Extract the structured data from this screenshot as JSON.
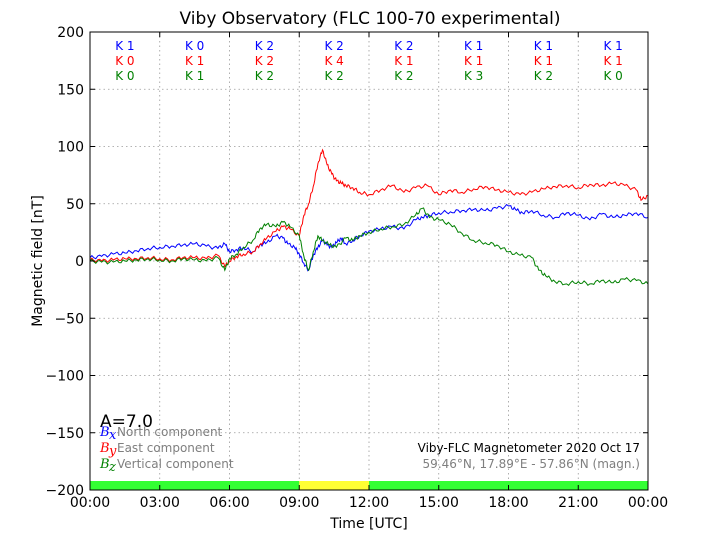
{
  "chart_data": {
    "type": "line",
    "title": "Viby Observatory (FLC 100-70 experimental)",
    "xlabel": "Time [UTC]",
    "ylabel": "Magnetic field [nT]",
    "xlim": [
      0,
      24
    ],
    "ylim": [
      -200,
      200
    ],
    "xticks": [
      0,
      3,
      6,
      9,
      12,
      15,
      18,
      21,
      24
    ],
    "xtick_labels": [
      "00:00",
      "03:00",
      "06:00",
      "09:00",
      "12:00",
      "15:00",
      "18:00",
      "21:00",
      "00:00"
    ],
    "yticks": [
      -200,
      -150,
      -100,
      -50,
      0,
      50,
      100,
      150,
      200
    ],
    "ytick_labels": [
      "−200",
      "−150",
      "−100",
      "−50",
      "0",
      "50",
      "100",
      "150",
      "200"
    ],
    "grid": true,
    "colors": {
      "north": "#0000ff",
      "east": "#ff0000",
      "vertical": "#008000"
    },
    "series": [
      {
        "name": "North component",
        "symbol": "B",
        "subscript": "x",
        "color": "#0000ff",
        "x": [
          0,
          0.5,
          1,
          1.5,
          2,
          2.5,
          3,
          3.5,
          4,
          4.5,
          5,
          5.5,
          5.8,
          6,
          6.3,
          6.6,
          7,
          7.3,
          7.6,
          8,
          8.3,
          8.5,
          8.8,
          9,
          9.2,
          9.4,
          9.6,
          9.8,
          10,
          10.2,
          10.4,
          10.6,
          10.8,
          11,
          11.3,
          11.6,
          12,
          12.5,
          13,
          13.5,
          14,
          14.3,
          14.6,
          15,
          15.5,
          16,
          16.5,
          17,
          17.5,
          18,
          18.3,
          18.6,
          19,
          19.5,
          20,
          20.5,
          21,
          21.5,
          22,
          22.5,
          23,
          23.5,
          24
        ],
        "values": [
          3,
          4,
          6,
          7,
          9,
          11,
          12,
          13,
          14,
          15,
          13,
          11,
          15,
          8,
          10,
          12,
          8,
          14,
          16,
          22,
          20,
          15,
          12,
          6,
          -2,
          -8,
          5,
          12,
          18,
          14,
          12,
          16,
          20,
          15,
          18,
          22,
          26,
          28,
          30,
          28,
          36,
          38,
          40,
          42,
          43,
          44,
          45,
          44,
          46,
          48,
          45,
          42,
          44,
          40,
          38,
          42,
          40,
          36,
          41,
          38,
          40,
          42,
          38
        ]
      },
      {
        "name": "East component",
        "symbol": "B",
        "subscript": "y",
        "color": "#ff0000",
        "x": [
          0,
          0.5,
          1,
          1.5,
          2,
          2.5,
          3,
          3.5,
          4,
          4.5,
          5,
          5.5,
          5.8,
          6,
          6.3,
          6.6,
          7,
          7.3,
          7.6,
          8,
          8.3,
          8.6,
          9,
          9.2,
          9.4,
          9.6,
          9.8,
          10,
          10.2,
          10.4,
          10.6,
          10.8,
          11,
          11.3,
          11.6,
          12,
          12.5,
          13,
          13.5,
          14,
          14.5,
          15,
          15.5,
          16,
          16.5,
          17,
          17.5,
          18,
          18.5,
          19,
          19.5,
          20,
          20.5,
          21,
          21.5,
          22,
          22.5,
          23,
          23.5,
          23.7,
          24
        ],
        "values": [
          1,
          0,
          1,
          2,
          2,
          3,
          2,
          1,
          3,
          3,
          2,
          5,
          -5,
          0,
          4,
          6,
          8,
          14,
          20,
          26,
          30,
          28,
          22,
          40,
          50,
          65,
          85,
          97,
          84,
          76,
          70,
          68,
          66,
          64,
          60,
          58,
          62,
          66,
          60,
          64,
          66,
          58,
          62,
          60,
          63,
          65,
          62,
          60,
          58,
          60,
          63,
          65,
          66,
          64,
          67,
          66,
          68,
          66,
          62,
          53,
          57
        ]
      },
      {
        "name": "Vertical component",
        "symbol": "B",
        "subscript": "z",
        "color": "#008000",
        "x": [
          0,
          0.5,
          1,
          1.5,
          2,
          2.5,
          3,
          3.5,
          4,
          4.5,
          5,
          5.5,
          5.8,
          6,
          6.3,
          6.6,
          7,
          7.3,
          7.6,
          8,
          8.3,
          8.6,
          9,
          9.2,
          9.4,
          9.6,
          9.8,
          10,
          10.3,
          10.6,
          11,
          11.3,
          11.6,
          12,
          12.5,
          13,
          13.5,
          14,
          14.3,
          14.6,
          15,
          15.5,
          16,
          16.5,
          17,
          17.5,
          18,
          18.5,
          19,
          19.3,
          19.6,
          20,
          20.5,
          21,
          21.5,
          22,
          22.5,
          23,
          23.5,
          24
        ],
        "values": [
          0,
          -1,
          -1,
          0,
          1,
          2,
          1,
          0,
          2,
          1,
          0,
          3,
          -8,
          2,
          6,
          12,
          18,
          28,
          32,
          30,
          34,
          30,
          22,
          4,
          -8,
          8,
          22,
          18,
          14,
          12,
          20,
          18,
          22,
          25,
          28,
          30,
          32,
          40,
          46,
          38,
          36,
          32,
          24,
          18,
          16,
          14,
          8,
          5,
          3,
          -8,
          -13,
          -18,
          -20,
          -18,
          -20,
          -17,
          -19,
          -16,
          -17,
          -20
        ]
      }
    ],
    "k_indices": {
      "north": [
        "K 1",
        "K 0",
        "K 2",
        "K 2",
        "K 2",
        "K 1",
        "K 1",
        "K 1"
      ],
      "east": [
        "K 0",
        "K 1",
        "K 2",
        "K 4",
        "K 1",
        "K 1",
        "K 1",
        "K 1"
      ],
      "vertical": [
        "K 0",
        "K 1",
        "K 2",
        "K 2",
        "K 2",
        "K 3",
        "K 2",
        "K 0"
      ]
    },
    "status_bar": [
      {
        "start": 0,
        "end": 9,
        "color": "#33ff33"
      },
      {
        "start": 9,
        "end": 12,
        "color": "#ffff33"
      },
      {
        "start": 12,
        "end": 24,
        "color": "#33ff33"
      }
    ],
    "a_index": "A=7.0",
    "station_line": "Viby-FLC Magnetometer 2020 Oct 17",
    "coord_line": "59.46°N, 17.89°E - 57.86°N (magn.)"
  }
}
